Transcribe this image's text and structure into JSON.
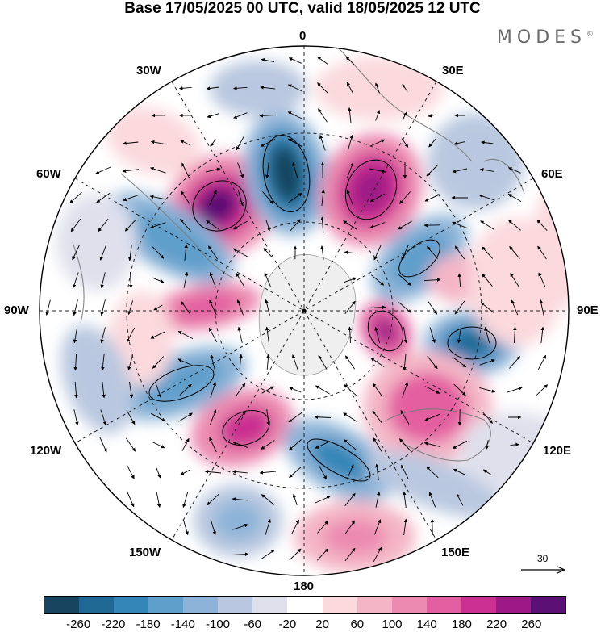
{
  "title": "Base 17/05/2025 00 UTC, valid 18/05/2025 12 UTC",
  "brand": "MODES",
  "brand_mark": "©",
  "longitude_labels": {
    "top": "0",
    "bottom": "180",
    "left": "90W",
    "right": "90E",
    "lon_30w": "30W",
    "lon_30e": "30E",
    "lon_60w": "60W",
    "lon_60e": "60E",
    "lon_120w": "120W",
    "lon_120e": "120E",
    "lon_150w": "150W",
    "lon_150e": "150E"
  },
  "reference_vector_label": "30",
  "colorbar": {
    "tick_labels": [
      "-260",
      "-220",
      "-180",
      "-140",
      "-100",
      "-60",
      "-20",
      "20",
      "60",
      "100",
      "140",
      "180",
      "220",
      "260"
    ],
    "colors": [
      "#19445f",
      "#1f6894",
      "#3385b8",
      "#5f9fcb",
      "#8db4d8",
      "#b9c8e0",
      "#dfe0ec",
      "#ffffff",
      "#fbd9dd",
      "#f4b6c6",
      "#ec8ab0",
      "#e35ea0",
      "#cb2f90",
      "#9d1a86",
      "#5b1076"
    ]
  },
  "palette": {
    "land_line": "#7a7a7a",
    "antarctica": "#efefef",
    "grid": "#222222"
  }
}
